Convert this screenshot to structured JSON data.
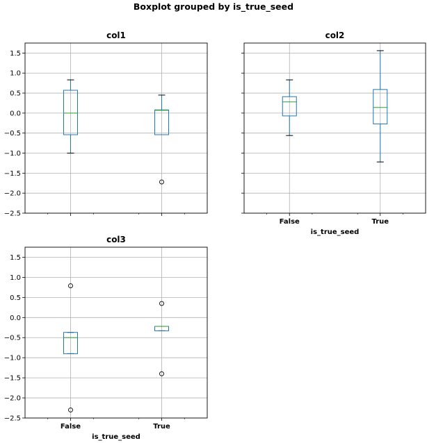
{
  "suptitle": "Boxplot grouped by is_true_seed",
  "chart_data": [
    {
      "type": "box",
      "title": "col1",
      "xlabel": "",
      "categories": [
        "False",
        "True"
      ],
      "show_xticklabels": false,
      "ylim": [
        -2.5,
        1.75
      ],
      "yticks": [
        -2.5,
        -2.0,
        -1.5,
        -1.0,
        -0.5,
        0.0,
        0.5,
        1.0,
        1.5
      ],
      "grid": true,
      "boxes": [
        {
          "category": "False",
          "whislo": -1.0,
          "q1": -0.54,
          "median": 0.0,
          "q3": 0.57,
          "whishi": 0.83,
          "fliers": []
        },
        {
          "category": "True",
          "whislo": -0.54,
          "q1": -0.54,
          "median": 0.07,
          "q3": 0.08,
          "whishi": 0.45,
          "fliers": [
            -1.72
          ]
        }
      ]
    },
    {
      "type": "box",
      "title": "col2",
      "xlabel": "is_true_seed",
      "categories": [
        "False",
        "True"
      ],
      "show_xticklabels": true,
      "show_yticklabels": false,
      "ylim": [
        -2.5,
        1.75
      ],
      "yticks": [
        -2.5,
        -2.0,
        -1.5,
        -1.0,
        -0.5,
        0.0,
        0.5,
        1.0,
        1.5
      ],
      "grid": true,
      "boxes": [
        {
          "category": "False",
          "whislo": -0.56,
          "q1": -0.07,
          "median": 0.28,
          "q3": 0.41,
          "whishi": 0.83,
          "fliers": []
        },
        {
          "category": "True",
          "whislo": -1.22,
          "q1": -0.27,
          "median": 0.14,
          "q3": 0.59,
          "whishi": 1.56,
          "fliers": []
        }
      ]
    },
    {
      "type": "box",
      "title": "col3",
      "xlabel": "is_true_seed",
      "categories": [
        "False",
        "True"
      ],
      "show_xticklabels": true,
      "ylim": [
        -2.5,
        1.75
      ],
      "yticks": [
        -2.5,
        -2.0,
        -1.5,
        -1.0,
        -0.5,
        0.0,
        0.5,
        1.0,
        1.5
      ],
      "grid": true,
      "boxes": [
        {
          "category": "False",
          "whislo": -0.9,
          "q1": -0.9,
          "median": -0.5,
          "q3": -0.37,
          "whishi": -0.37,
          "fliers": [
            0.79,
            -2.3
          ]
        },
        {
          "category": "True",
          "whislo": -0.33,
          "q1": -0.33,
          "median": -0.22,
          "q3": -0.22,
          "whishi": -0.22,
          "fliers": [
            0.35,
            -1.4
          ]
        }
      ]
    }
  ],
  "colors": {
    "box": "#1f77b4",
    "median": "#2ca02c",
    "grid": "#b0b0b0",
    "frame": "#000000"
  }
}
